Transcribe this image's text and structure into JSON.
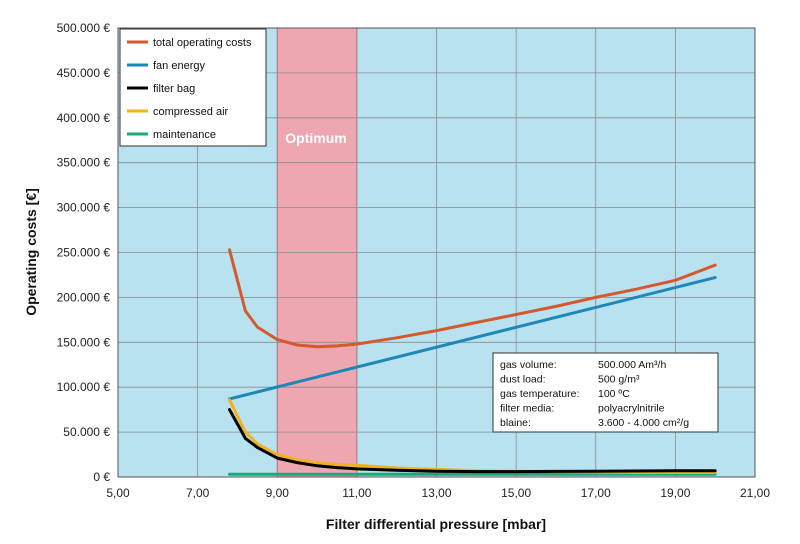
{
  "chart_data": {
    "type": "line",
    "title": "",
    "xlabel": "Filter differential pressure [mbar]",
    "ylabel": "Operating costs [€]",
    "xlim": [
      5,
      21
    ],
    "ylim": [
      0,
      500000
    ],
    "x_ticks": [
      5,
      7,
      9,
      11,
      13,
      15,
      17,
      19,
      21
    ],
    "x_tick_labels": [
      "5,00",
      "7,00",
      "9,00",
      "11,00",
      "13,00",
      "15,00",
      "17,00",
      "19,00",
      "21,00"
    ],
    "y_ticks": [
      0,
      50000,
      100000,
      150000,
      200000,
      250000,
      300000,
      350000,
      400000,
      450000,
      500000
    ],
    "y_tick_labels": [
      "0 €",
      "50.000 €",
      "100.000 €",
      "150.000 €",
      "200.000 €",
      "250.000 €",
      "300.000 €",
      "350.000 €",
      "400.000 €",
      "450.000 €",
      "500.000 €"
    ],
    "grid": true,
    "legend_position": "top-left",
    "optimum_band": {
      "label": "Optimum",
      "x_from": 9,
      "x_to": 11,
      "color": "#f4a0a8"
    },
    "series": [
      {
        "name": "total operating costs",
        "color": "#d45a2e",
        "x": [
          7.8,
          8.2,
          8.5,
          9.0,
          9.5,
          10.0,
          10.5,
          11.0,
          12.0,
          13.0,
          14.0,
          15.0,
          16.0,
          17.0,
          18.0,
          19.0,
          20.0
        ],
        "y": [
          253000,
          185000,
          167000,
          153000,
          147000,
          145000,
          146000,
          148000,
          155000,
          163000,
          172000,
          181000,
          190000,
          200000,
          209000,
          219000,
          236000
        ]
      },
      {
        "name": "fan energy",
        "color": "#1e87b8",
        "x": [
          7.8,
          20.0
        ],
        "y": [
          87000,
          222000
        ]
      },
      {
        "name": "filter bag",
        "color": "#000000",
        "x": [
          7.8,
          8.2,
          8.5,
          9.0,
          9.5,
          10.0,
          10.5,
          11.0,
          12.0,
          13.0,
          14.0,
          15.0,
          16.0,
          17.0,
          18.0,
          19.0,
          20.0
        ],
        "y": [
          75000,
          43000,
          33000,
          21000,
          16000,
          12500,
          10500,
          9000,
          7500,
          6500,
          6000,
          6000,
          6200,
          6500,
          6700,
          6900,
          7000
        ]
      },
      {
        "name": "compressed air",
        "color": "#f2b21c",
        "x": [
          7.8,
          8.2,
          8.5,
          9.0,
          9.5,
          10.0,
          10.5,
          11.0,
          12.0,
          13.0,
          14.0,
          15.0,
          16.0,
          17.0,
          18.0,
          19.0,
          20.0
        ],
        "y": [
          86000,
          50000,
          37000,
          25000,
          19000,
          16000,
          14000,
          13000,
          10000,
          8500,
          7000,
          6500,
          6000,
          5500,
          5000,
          5000,
          5000
        ]
      },
      {
        "name": "maintenance",
        "color": "#19a97b",
        "x": [
          7.8,
          20.0
        ],
        "y": [
          3000,
          3000
        ]
      }
    ],
    "info_box": [
      {
        "label": "gas volume:",
        "value": "500.000 Am³/h"
      },
      {
        "label": "dust load:",
        "value": "500 g/m³"
      },
      {
        "label": "gas temperature:",
        "value": "100 ºC"
      },
      {
        "label": "filter media:",
        "value": "polyacrylnitrile"
      },
      {
        "label": "blaine:",
        "value": "3.600 - 4.000 cm²/g"
      }
    ]
  }
}
